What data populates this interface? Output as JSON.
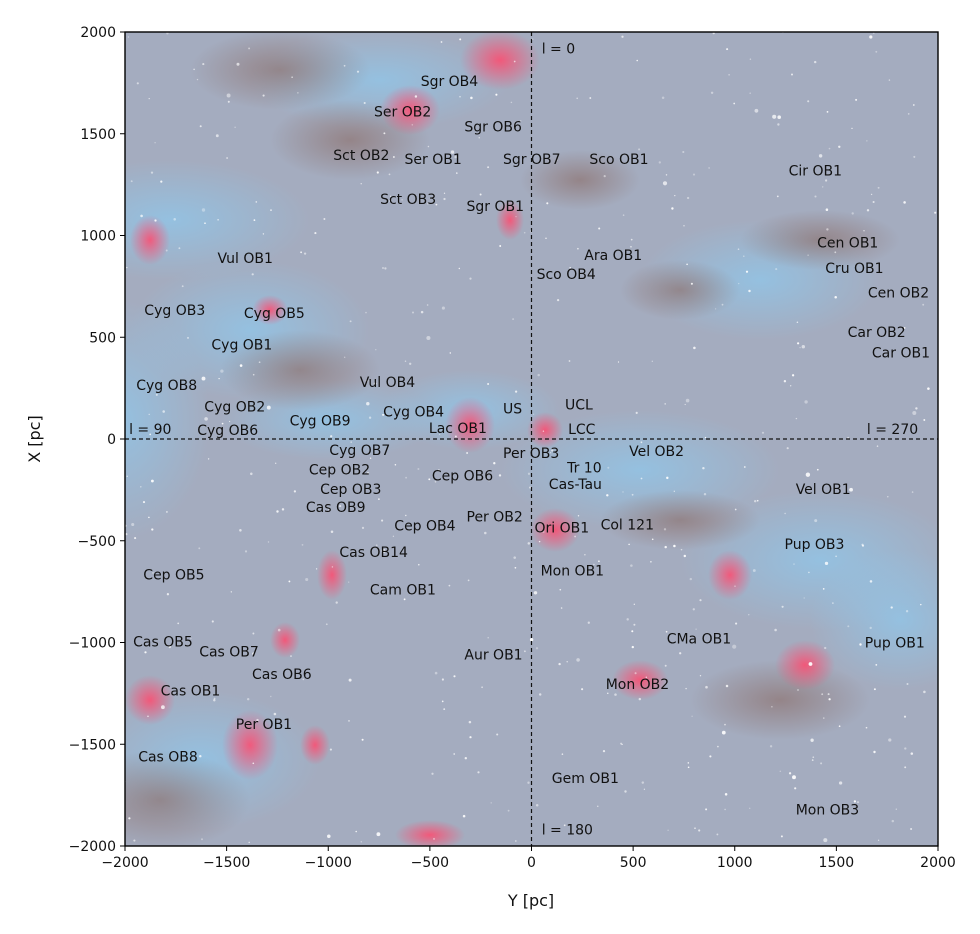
{
  "chart_data": {
    "type": "scatter",
    "xlabel": "Y [pc]",
    "ylabel": "X [pc]",
    "xlim": [
      -2000,
      2000
    ],
    "ylim": [
      -2000,
      2000
    ],
    "x_ticks": [
      -2000,
      -1500,
      -1000,
      -500,
      0,
      500,
      1000,
      1500,
      2000
    ],
    "y_ticks": [
      -2000,
      -1500,
      -1000,
      -500,
      0,
      500,
      1000,
      1500,
      2000
    ],
    "x_tick_labels": [
      "−2000",
      "−1500",
      "−1000",
      "−500",
      "0",
      "500",
      "1000",
      "1500",
      "2000"
    ],
    "y_tick_labels": [
      "−2000",
      "−1500",
      "−1000",
      "−500",
      "0",
      "500",
      "1000",
      "1500",
      "2000"
    ],
    "reference_lines": [
      {
        "orientation": "vertical",
        "at": 0,
        "style": "dashed"
      },
      {
        "orientation": "horizontal",
        "at": 0,
        "style": "dashed"
      }
    ],
    "galactic_longitude_labels": [
      {
        "text": "l = 0",
        "x": 50,
        "y": 1920
      },
      {
        "text": "l = 180",
        "x": 50,
        "y": -1920
      },
      {
        "text": "l = 90",
        "x": -1980,
        "y": 50
      },
      {
        "text": "l = 270",
        "x": 1650,
        "y": 50
      }
    ],
    "labels": [
      {
        "text": "Sgr OB4",
        "x": -545,
        "y": 1760
      },
      {
        "text": "Ser OB2",
        "x": -775,
        "y": 1610
      },
      {
        "text": "Sgr OB6",
        "x": -330,
        "y": 1535
      },
      {
        "text": "Sct OB2",
        "x": -975,
        "y": 1395
      },
      {
        "text": "Ser OB1",
        "x": -625,
        "y": 1375
      },
      {
        "text": "Sgr OB7",
        "x": -140,
        "y": 1375
      },
      {
        "text": "Sco OB1",
        "x": 285,
        "y": 1375
      },
      {
        "text": "Cir OB1",
        "x": 1265,
        "y": 1320
      },
      {
        "text": "Sct OB3",
        "x": -745,
        "y": 1180
      },
      {
        "text": "Sgr OB1",
        "x": -320,
        "y": 1145
      },
      {
        "text": "Cen OB1",
        "x": 1405,
        "y": 965
      },
      {
        "text": "Ara OB1",
        "x": 260,
        "y": 905
      },
      {
        "text": "Vul OB1",
        "x": -1545,
        "y": 890
      },
      {
        "text": "Cru OB1",
        "x": 1445,
        "y": 840
      },
      {
        "text": "Sco OB4",
        "x": 25,
        "y": 810
      },
      {
        "text": "Cen OB2",
        "x": 1655,
        "y": 720
      },
      {
        "text": "Cyg OB3",
        "x": -1905,
        "y": 635
      },
      {
        "text": "Cyg OB5",
        "x": -1415,
        "y": 620
      },
      {
        "text": "Car OB2",
        "x": 1555,
        "y": 525
      },
      {
        "text": "Cyg OB1",
        "x": -1575,
        "y": 465
      },
      {
        "text": "Car OB1",
        "x": 1675,
        "y": 425
      },
      {
        "text": "Vul OB4",
        "x": -845,
        "y": 280
      },
      {
        "text": "Cyg OB8",
        "x": -1945,
        "y": 265
      },
      {
        "text": "UCL",
        "x": 165,
        "y": 170
      },
      {
        "text": "Cyg OB2",
        "x": -1610,
        "y": 160
      },
      {
        "text": "US",
        "x": -140,
        "y": 150
      },
      {
        "text": "Cyg OB4",
        "x": -730,
        "y": 135
      },
      {
        "text": "Cyg OB9",
        "x": -1190,
        "y": 90
      },
      {
        "text": "Lac OB1",
        "x": -505,
        "y": 55
      },
      {
        "text": "LCC",
        "x": 180,
        "y": 50
      },
      {
        "text": "Cyg OB6",
        "x": -1645,
        "y": 45
      },
      {
        "text": "Cyg OB7",
        "x": -995,
        "y": -55
      },
      {
        "text": "Per OB3",
        "x": -140,
        "y": -70
      },
      {
        "text": "Vel OB2",
        "x": 480,
        "y": -60
      },
      {
        "text": "Cep OB2",
        "x": -1095,
        "y": -150
      },
      {
        "text": "Tr 10",
        "x": 175,
        "y": -140
      },
      {
        "text": "Cep OB6",
        "x": -490,
        "y": -180
      },
      {
        "text": "Cas-Tau",
        "x": 85,
        "y": -220
      },
      {
        "text": "Cep OB3",
        "x": -1040,
        "y": -245
      },
      {
        "text": "Vel OB1",
        "x": 1300,
        "y": -245
      },
      {
        "text": "Cas OB9",
        "x": -1110,
        "y": -335
      },
      {
        "text": "Per OB2",
        "x": -320,
        "y": -380
      },
      {
        "text": "Cep OB4",
        "x": -675,
        "y": -425
      },
      {
        "text": "Ori OB1",
        "x": 15,
        "y": -435
      },
      {
        "text": "Col 121",
        "x": 340,
        "y": -420
      },
      {
        "text": "Pup OB3",
        "x": 1245,
        "y": -515
      },
      {
        "text": "Cas OB14",
        "x": -945,
        "y": -555
      },
      {
        "text": "Cep OB5",
        "x": -1910,
        "y": -665
      },
      {
        "text": "Mon OB1",
        "x": 45,
        "y": -645
      },
      {
        "text": "Cam OB1",
        "x": -795,
        "y": -740
      },
      {
        "text": "Cas OB5",
        "x": -1960,
        "y": -995
      },
      {
        "text": "CMa OB1",
        "x": 665,
        "y": -980
      },
      {
        "text": "Pup OB1",
        "x": 1640,
        "y": -1000
      },
      {
        "text": "Cas OB7",
        "x": -1635,
        "y": -1045
      },
      {
        "text": "Aur OB1",
        "x": -330,
        "y": -1060
      },
      {
        "text": "Cas OB6",
        "x": -1375,
        "y": -1155
      },
      {
        "text": "Mon OB2",
        "x": 365,
        "y": -1205
      },
      {
        "text": "Cas OB1",
        "x": -1825,
        "y": -1235
      },
      {
        "text": "Per OB1",
        "x": -1455,
        "y": -1400
      },
      {
        "text": "Cas OB8",
        "x": -1935,
        "y": -1560
      },
      {
        "text": "Gem OB1",
        "x": 100,
        "y": -1665
      },
      {
        "text": "Mon OB3",
        "x": 1300,
        "y": -1820
      }
    ]
  }
}
